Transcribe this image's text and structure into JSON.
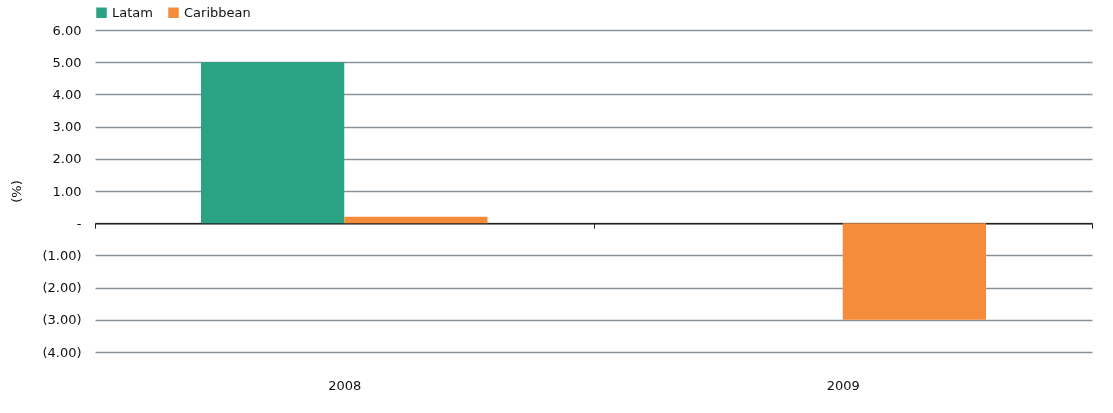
{
  "chart_data": {
    "type": "bar",
    "ylabel": "(%)",
    "categories": [
      "2008",
      "2009"
    ],
    "series": [
      {
        "name": "Latam",
        "color": "#29a383",
        "values": [
          5.0,
          0.0
        ]
      },
      {
        "name": "Caribbean",
        "color": "#f48c3c",
        "values": [
          0.2,
          -3.0
        ]
      }
    ],
    "ylim": [
      -4,
      6
    ],
    "yticks": [
      {
        "value": -4,
        "label": "(4.00)"
      },
      {
        "value": -3,
        "label": "(3.00)"
      },
      {
        "value": -2,
        "label": "(2.00)"
      },
      {
        "value": -1,
        "label": "(1.00)"
      },
      {
        "value": 0,
        "label": "-"
      },
      {
        "value": 1,
        "label": "1.00"
      },
      {
        "value": 2,
        "label": "2.00"
      },
      {
        "value": 3,
        "label": "3.00"
      },
      {
        "value": 4,
        "label": "4.00"
      },
      {
        "value": 5,
        "label": "5.00"
      },
      {
        "value": 6,
        "label": "6.00"
      }
    ],
    "grid": "y",
    "legend": "top left"
  }
}
